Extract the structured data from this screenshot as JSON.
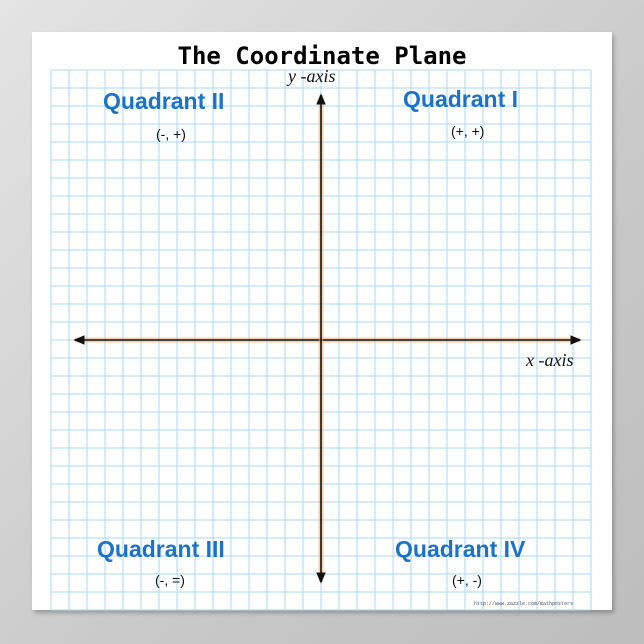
{
  "title": "The Coordinate Plane",
  "axes": {
    "x_label": "x -axis",
    "y_label": "y -axis"
  },
  "quadrants": [
    {
      "name": "Quadrant I",
      "signs": "(+, +)"
    },
    {
      "name": "Quadrant II",
      "signs": "(-, +)"
    },
    {
      "name": "Quadrant III",
      "signs": "(-, =)"
    },
    {
      "name": "Quadrant IV",
      "signs": "(+, -)"
    }
  ],
  "footer_url": "http://www.zazzle.com/mathposters",
  "colors": {
    "grid": "#a9daf5",
    "quadrant_text": "#1a73c9",
    "axis": "#111111",
    "axis_glow": "#f0a060"
  }
}
